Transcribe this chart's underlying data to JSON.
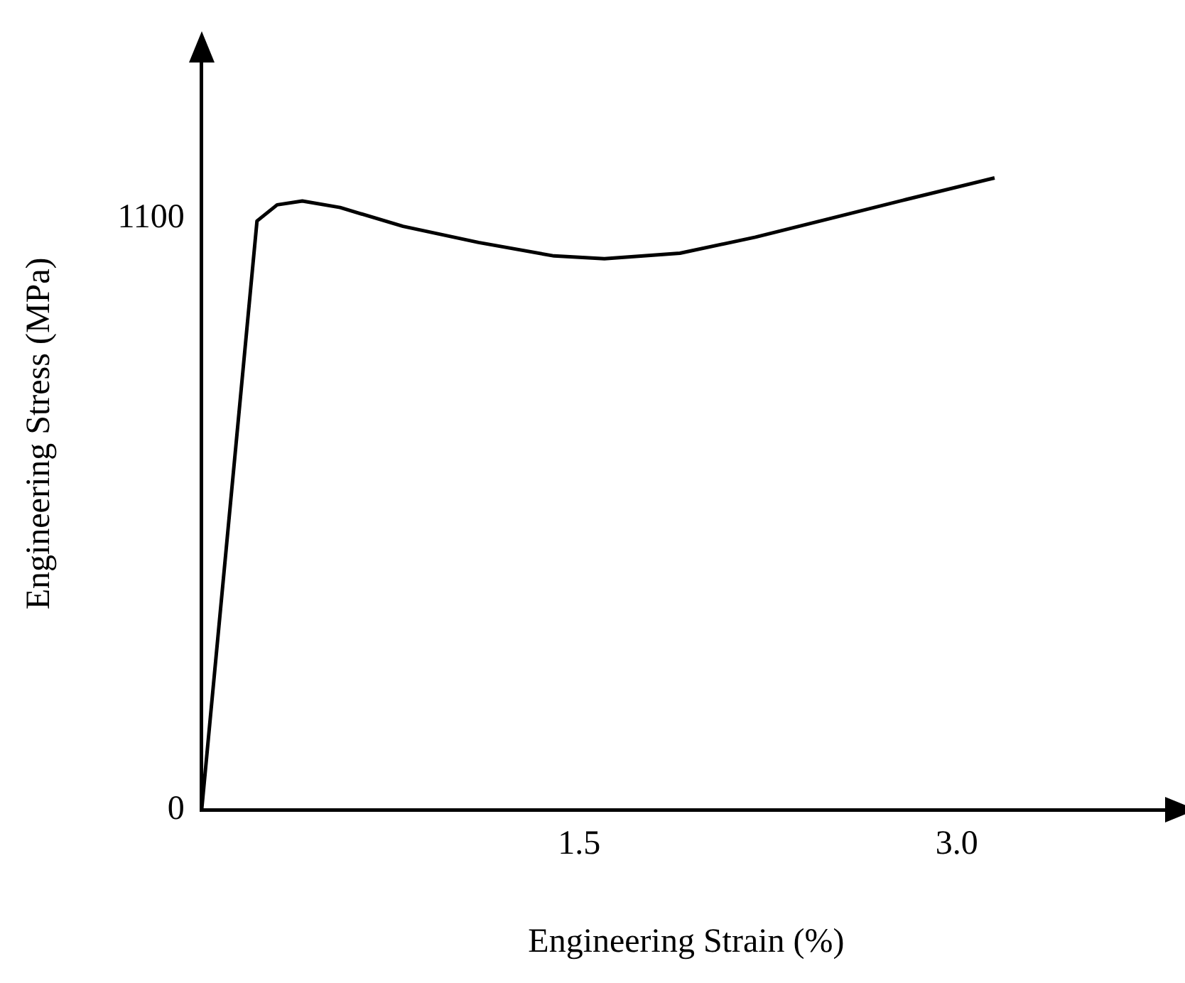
{
  "chart_data": {
    "type": "line",
    "xlabel": "Engineering Strain (%)",
    "ylabel": "Engineering Stress (MPa)",
    "x": [
      0,
      0.22,
      0.3,
      0.4,
      0.55,
      0.8,
      1.1,
      1.4,
      1.6,
      1.9,
      2.2,
      2.5,
      2.8,
      3.15
    ],
    "series": [
      {
        "color": "#000000",
        "values": [
          0,
          1095,
          1125,
          1132,
          1120,
          1085,
          1055,
          1030,
          1025,
          1035,
          1065,
          1100,
          1135,
          1175
        ]
      }
    ],
    "xlim": [
      0,
      3.85
    ],
    "xticks": [
      1.5,
      {
        "value": 3,
        "label": "3.0"
      }
    ],
    "ylim": [
      0,
      1400
    ],
    "yticks": [
      0,
      1100
    ],
    "grid": false,
    "legend": false,
    "marker": "none",
    "line_style": "solid"
  }
}
